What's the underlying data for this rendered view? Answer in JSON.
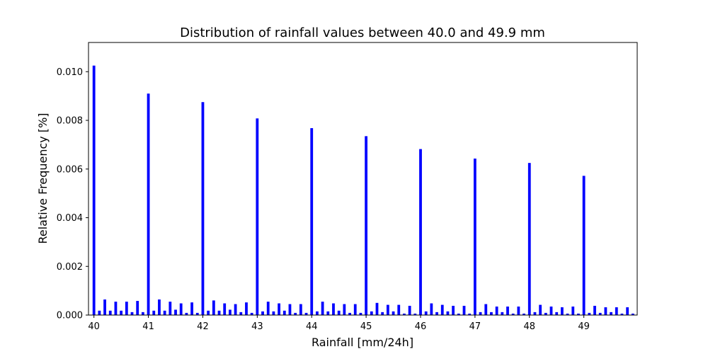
{
  "chart_data": {
    "type": "bar",
    "title": "Distribution of rainfall values between 40.0 and 49.9 mm",
    "xlabel": "Rainfall [mm/24h]",
    "ylabel": "Relative Frequency [%]",
    "xlim": [
      39.9,
      49.98
    ],
    "ylim": [
      0.0,
      0.0112
    ],
    "x_ticks": [
      40,
      41,
      42,
      43,
      44,
      45,
      46,
      47,
      48,
      49
    ],
    "y_ticks": [
      0.0,
      0.002,
      0.004,
      0.006,
      0.008,
      0.01
    ],
    "y_tick_labels": [
      "0.000",
      "0.002",
      "0.004",
      "0.006",
      "0.008",
      "0.010"
    ],
    "grid": false,
    "bar_color": "#0000ff",
    "x": [
      40.0,
      40.1,
      40.2,
      40.3,
      40.4,
      40.5,
      40.6,
      40.7,
      40.8,
      40.9,
      41.0,
      41.1,
      41.2,
      41.3,
      41.4,
      41.5,
      41.6,
      41.7,
      41.8,
      41.9,
      42.0,
      42.1,
      42.2,
      42.3,
      42.4,
      42.5,
      42.6,
      42.7,
      42.8,
      42.9,
      43.0,
      43.1,
      43.2,
      43.3,
      43.4,
      43.5,
      43.6,
      43.7,
      43.8,
      43.9,
      44.0,
      44.1,
      44.2,
      44.3,
      44.4,
      44.5,
      44.6,
      44.7,
      44.8,
      44.9,
      45.0,
      45.1,
      45.2,
      45.3,
      45.4,
      45.5,
      45.6,
      45.7,
      45.8,
      45.9,
      46.0,
      46.1,
      46.2,
      46.3,
      46.4,
      46.5,
      46.6,
      46.7,
      46.8,
      46.9,
      47.0,
      47.1,
      47.2,
      47.3,
      47.4,
      47.5,
      47.6,
      47.7,
      47.8,
      47.9,
      48.0,
      48.1,
      48.2,
      48.3,
      48.4,
      48.5,
      48.6,
      48.7,
      48.8,
      48.9,
      49.0,
      49.1,
      49.2,
      49.3,
      49.4,
      49.5,
      49.6,
      49.7,
      49.8,
      49.9
    ],
    "values": [
      0.01025,
      0.00018,
      0.00064,
      0.00018,
      0.00055,
      0.00018,
      0.00055,
      0.00012,
      0.00058,
      0.00012,
      0.0091,
      0.00018,
      0.00064,
      0.00018,
      0.00055,
      0.00022,
      0.00048,
      9e-05,
      0.00052,
      9e-05,
      0.00875,
      0.00018,
      0.0006,
      0.00018,
      0.00048,
      0.00022,
      0.00045,
      0.00012,
      0.00052,
      9e-05,
      0.00808,
      0.00015,
      0.00055,
      0.00015,
      0.00048,
      0.00018,
      0.00045,
      9e-05,
      0.00045,
      9e-05,
      0.00768,
      0.00015,
      0.00055,
      0.00015,
      0.00048,
      0.00018,
      0.00045,
      9e-05,
      0.00045,
      9e-05,
      0.00735,
      0.00015,
      0.0005,
      0.00012,
      0.00042,
      0.00015,
      0.00042,
      6e-05,
      0.00038,
      6e-05,
      0.00682,
      0.00015,
      0.00048,
      0.00012,
      0.00042,
      0.00015,
      0.00038,
      6e-05,
      0.00038,
      6e-05,
      0.00643,
      0.00012,
      0.00045,
      0.00012,
      0.00035,
      0.00012,
      0.00035,
      6e-05,
      0.00035,
      6e-05,
      0.00625,
      0.00012,
      0.00042,
      9e-05,
      0.00035,
      0.00012,
      0.00032,
      6e-05,
      0.00035,
      6e-05,
      0.00572,
      9e-05,
      0.00038,
      9e-05,
      0.00032,
      0.00012,
      0.00032,
      6e-05,
      0.00032,
      6e-05
    ]
  }
}
